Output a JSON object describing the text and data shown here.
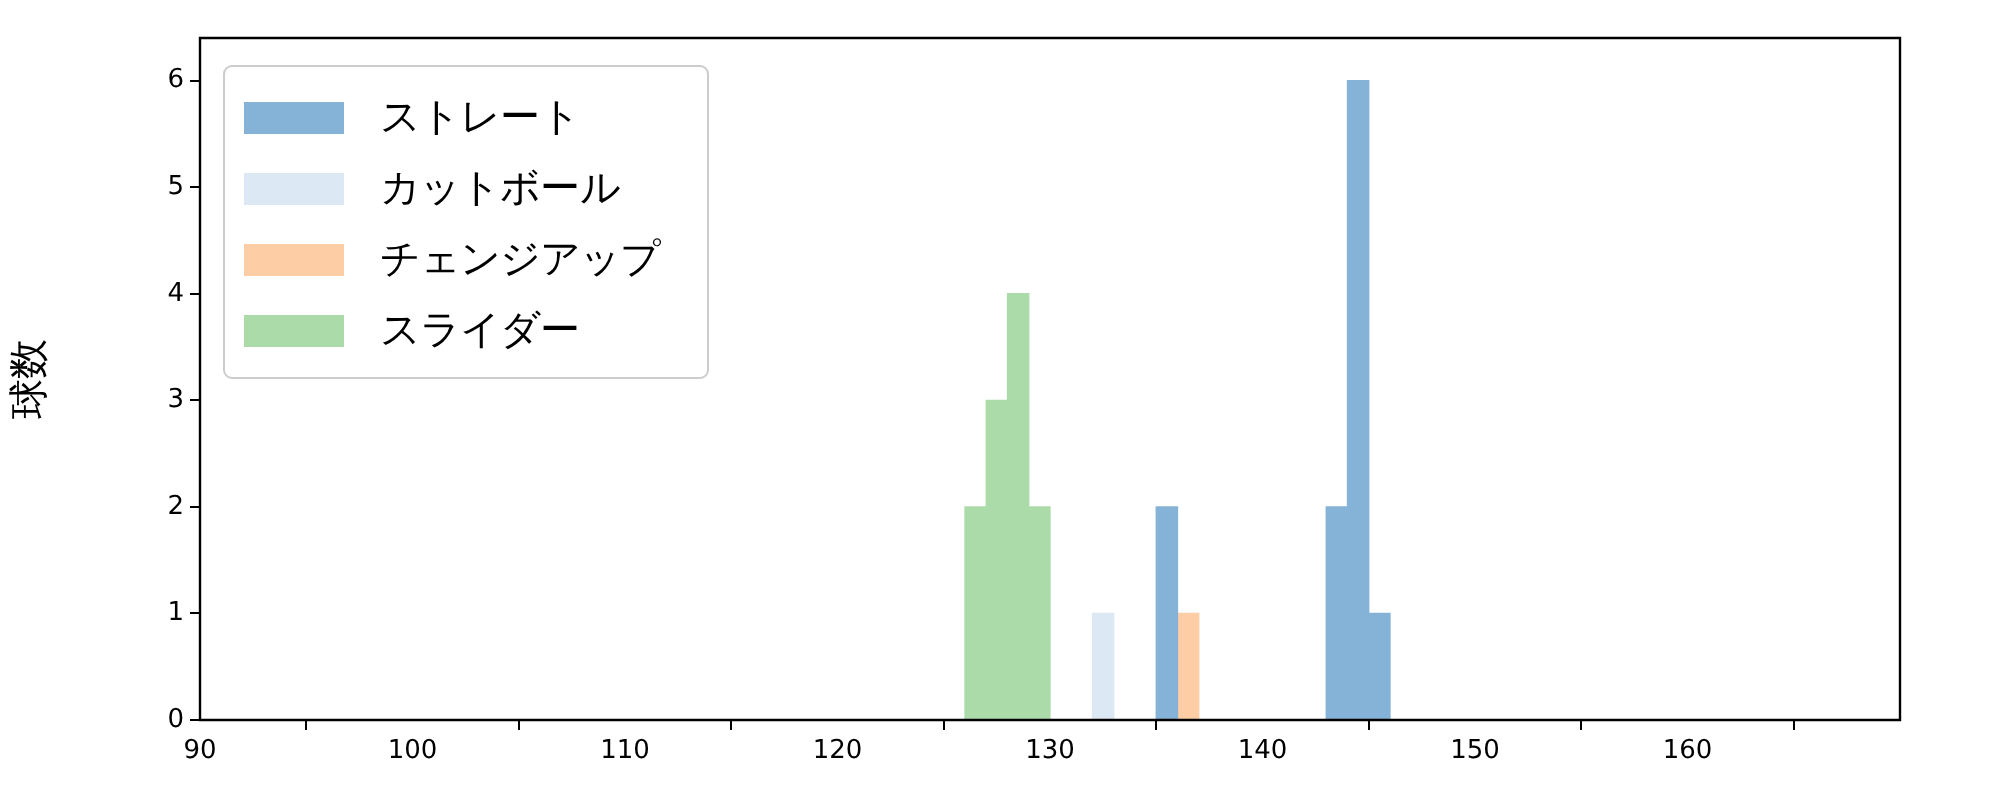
{
  "chart_data": {
    "type": "histogram",
    "ylabel": "球数",
    "xlim": [
      90,
      170
    ],
    "xticks": [
      90,
      100,
      110,
      120,
      130,
      140,
      150,
      160
    ],
    "ylim": [
      0,
      6.4
    ],
    "yticks": [
      0,
      1,
      2,
      3,
      4,
      5,
      6
    ],
    "grid": false,
    "legend": "top left",
    "bins": [
      126,
      127,
      128,
      129,
      130,
      131,
      132,
      133,
      134,
      135,
      136,
      137,
      138,
      139,
      140,
      141,
      142,
      143,
      144,
      145,
      146
    ],
    "series": [
      {
        "name": "ストレート",
        "color": "#84b3d7",
        "values": [
          0,
          0,
          0,
          0,
          0,
          0,
          0,
          0,
          0,
          2,
          0,
          0,
          0,
          0,
          0,
          0,
          0,
          2,
          6,
          1
        ]
      },
      {
        "name": "カットボール",
        "color": "#dce8f4",
        "values": [
          0,
          0,
          0,
          0,
          0,
          0,
          1,
          0,
          0,
          0,
          0,
          0,
          0,
          0,
          0,
          0,
          0,
          0,
          0,
          0
        ]
      },
      {
        "name": "チェンジアップ",
        "color": "#fdcea6",
        "values": [
          0,
          0,
          0,
          0,
          0,
          0,
          0,
          0,
          0,
          0,
          1,
          0,
          0,
          0,
          0,
          0,
          0,
          0,
          0,
          0
        ]
      },
      {
        "name": "スライダー",
        "color": "#acdbaa",
        "values": [
          2,
          3,
          4,
          2,
          0,
          0,
          0,
          0,
          0,
          0,
          0,
          0,
          0,
          0,
          0,
          0,
          0,
          0,
          0,
          0
        ]
      }
    ]
  }
}
